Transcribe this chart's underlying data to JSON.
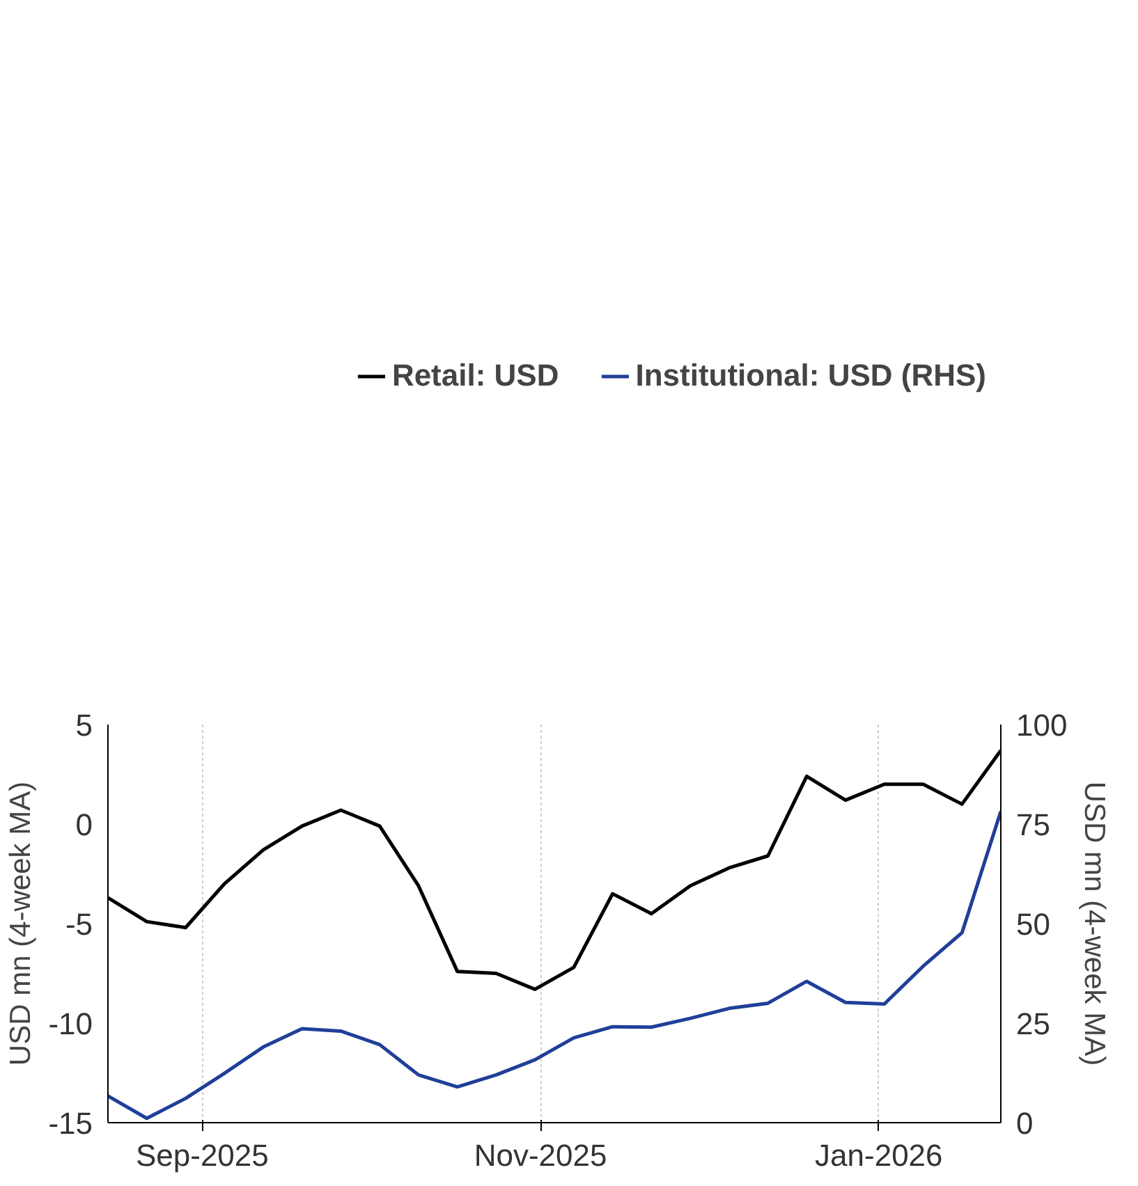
{
  "chart_data": {
    "type": "line",
    "x": [
      "2025-08-15",
      "2025-08-22",
      "2025-08-29",
      "2025-09-05",
      "2025-09-12",
      "2025-09-19",
      "2025-09-26",
      "2025-10-03",
      "2025-10-10",
      "2025-10-17",
      "2025-10-24",
      "2025-10-31",
      "2025-11-07",
      "2025-11-14",
      "2025-11-21",
      "2025-11-28",
      "2025-12-05",
      "2025-12-12",
      "2025-12-19",
      "2025-12-26",
      "2026-01-02",
      "2026-01-09",
      "2026-01-16",
      "2026-01-23"
    ],
    "series": [
      {
        "name": "Retail: USD",
        "color": "#000000",
        "values": [
          -3.7,
          -4.9,
          -5.2,
          -3.0,
          -1.3,
          -0.1,
          0.7,
          -0.1,
          -3.1,
          -7.4,
          -7.5,
          -8.3,
          -7.2,
          -3.5,
          -4.5,
          -3.1,
          -2.2,
          -1.6,
          2.4,
          1.2,
          2.0,
          2.0,
          1.0,
          3.7
        ]
      },
      {
        "name": "Institutional: USD (RHS)",
        "color": "#1f3f99",
        "axis": "y2",
        "values": [
          6.7,
          1.1,
          6.1,
          12.4,
          19.0,
          23.6,
          23.0,
          19.6,
          12.0,
          9.0,
          12.0,
          15.8,
          21.3,
          24.1,
          24.0,
          26.2,
          28.7,
          30.0,
          35.5,
          30.2,
          29.8,
          39.3,
          47.7,
          78.2
        ]
      }
    ],
    "ylabel": "USD mn (4-week MA)",
    "y2label": "USD mn (4-week MA)",
    "xlim": [
      "2025-08-15",
      "2026-01-23"
    ],
    "xticks": [
      {
        "value": "2025-09-01",
        "label": "Sep-2025"
      },
      {
        "value": "2025-11-01",
        "label": "Nov-2025"
      },
      {
        "value": "2026-01-01",
        "label": "Jan-2026"
      }
    ],
    "ylim": [
      -15,
      5
    ],
    "yticks": [
      -15,
      -10,
      -5,
      0,
      5
    ],
    "y2lim": [
      0,
      100
    ],
    "y2ticks": [
      0,
      25,
      50,
      75,
      100
    ],
    "grid": "x",
    "legend": "top",
    "line_style": "solid"
  }
}
